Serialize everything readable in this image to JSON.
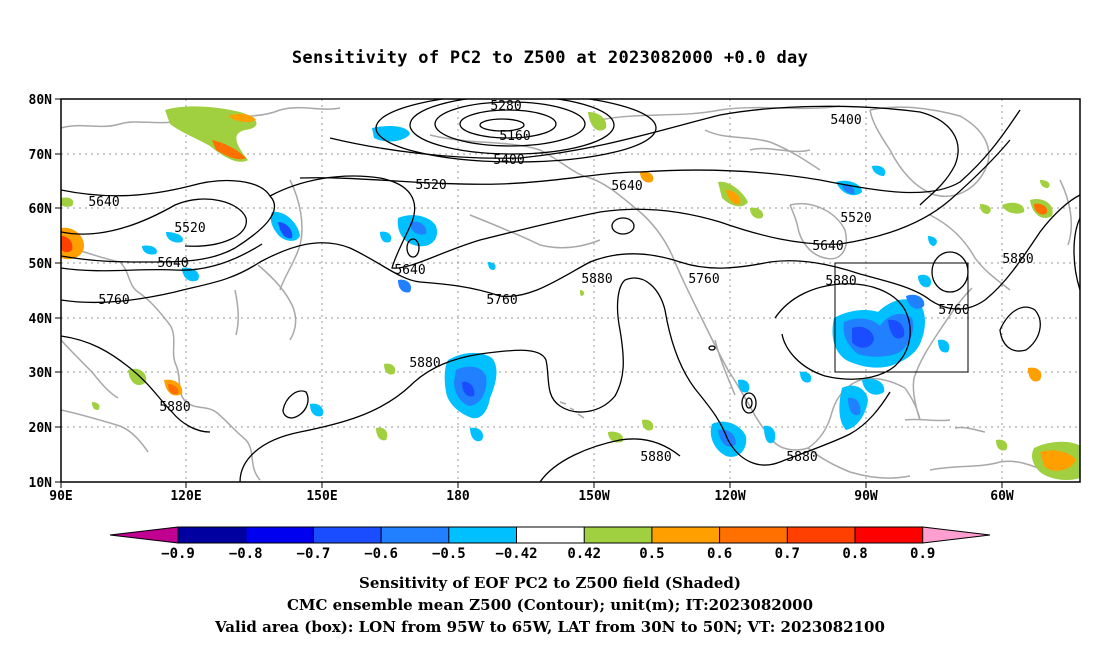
{
  "title": "Sensitivity of PC2 to Z500 at 2023082000 +0.0 day",
  "map": {
    "lat_labels": [
      "80N",
      "70N",
      "60N",
      "50N",
      "40N",
      "30N",
      "20N",
      "10N"
    ],
    "lon_labels": [
      "90E",
      "120E",
      "150E",
      "180",
      "150W",
      "120W",
      "90W",
      "60W"
    ],
    "contour_labels": [
      {
        "text": "5280"
      },
      {
        "text": "5160"
      },
      {
        "text": "5400"
      },
      {
        "text": "5400"
      },
      {
        "text": "5520"
      },
      {
        "text": "5640"
      },
      {
        "text": "5640"
      },
      {
        "text": "5520"
      },
      {
        "text": "5640"
      },
      {
        "text": "5760"
      },
      {
        "text": "5520"
      },
      {
        "text": "5640"
      },
      {
        "text": "5640"
      },
      {
        "text": "5760"
      },
      {
        "text": "5880"
      },
      {
        "text": "5760"
      },
      {
        "text": "5880"
      },
      {
        "text": "5880"
      },
      {
        "text": "5760"
      },
      {
        "text": "5880"
      },
      {
        "text": "5880"
      },
      {
        "text": "5880"
      },
      {
        "text": "5880"
      }
    ],
    "valid_box": {
      "lon": "95W to 65W",
      "lat": "30N to 50N"
    }
  },
  "colorbar": {
    "colors": [
      "#c00090",
      "#0000a0",
      "#0000f0",
      "#1a4dff",
      "#2080ff",
      "#00c0ff",
      "#ffffff",
      "#a0d040",
      "#ffa000",
      "#ff7000",
      "#ff4000",
      "#ff0000",
      "#ff9fd0"
    ],
    "labels": [
      "−0.9",
      "−0.8",
      "−0.7",
      "−0.6",
      "−0.5",
      "−0.42",
      "0.42",
      "0.5",
      "0.6",
      "0.7",
      "0.8",
      "0.9"
    ]
  },
  "captions": [
    "Sensitivity of EOF PC2 to Z500 field (Shaded)",
    "CMC ensemble mean Z500 (Contour); unit(m); IT:2023082000",
    "Valid area (box): LON from 95W to 65W, LAT from 30N to 50N; VT: 2023082100"
  ]
}
